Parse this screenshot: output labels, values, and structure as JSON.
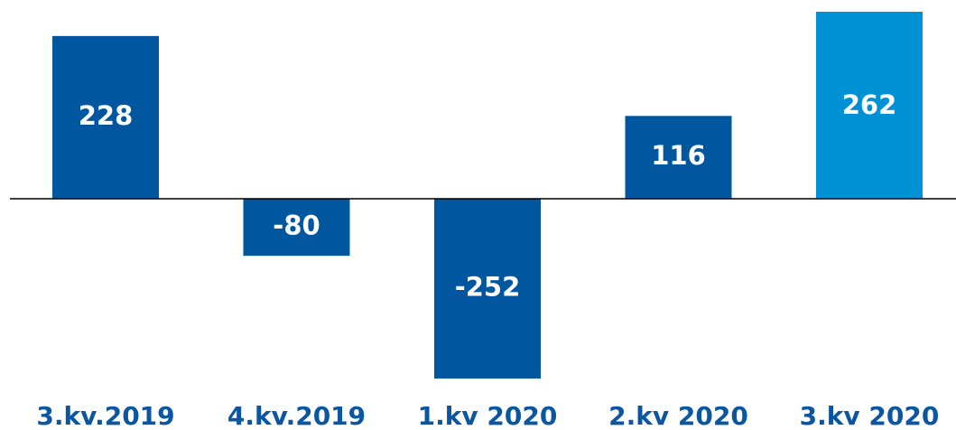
{
  "chart_data": {
    "type": "bar",
    "categories": [
      "3.kv.2019",
      "4.kv.2019",
      "1.kv 2020",
      "2.kv 2020",
      "3.kv 2020"
    ],
    "values": [
      228,
      -80,
      -252,
      116,
      262
    ],
    "colors": [
      "#0057a0",
      "#0057a0",
      "#0057a0",
      "#0057a0",
      "#0091d5"
    ]
  }
}
